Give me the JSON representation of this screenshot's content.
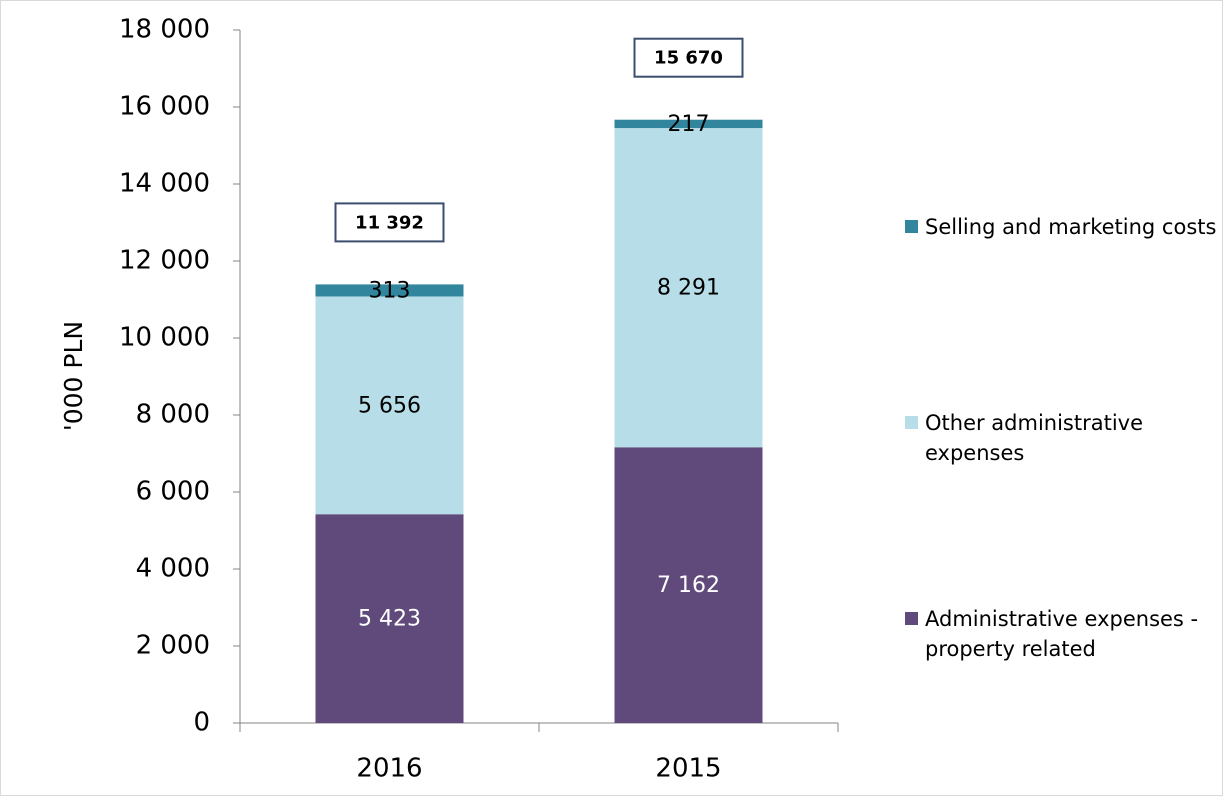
{
  "chart_data": {
    "type": "stacked_bar",
    "y_label": "'000 PLN",
    "categories": [
      "2016",
      "2015"
    ],
    "series": [
      {
        "name": "Administrative expenses - property related",
        "color": "#604a7b",
        "label_color": "#ffffff",
        "values": [
          5423,
          7162
        ],
        "value_labels": [
          "5 423",
          "7 162"
        ]
      },
      {
        "name": "Other administrative expenses",
        "color": "#b7dde8",
        "label_color": "#000000",
        "values": [
          5656,
          8291
        ],
        "value_labels": [
          "5 656",
          "8 291"
        ]
      },
      {
        "name": "Selling and marketing costs",
        "color": "#31859c",
        "label_color": "#000000",
        "values": [
          313,
          217
        ],
        "value_labels": [
          "313",
          "217"
        ]
      }
    ],
    "totals": [
      11392,
      15670
    ],
    "total_labels": [
      "11 392",
      "15 670"
    ],
    "ylim": [
      0,
      18000
    ],
    "yticks": [
      0,
      {
        "value": 2000,
        "label": "2 000"
      },
      {
        "value": 4000,
        "label": "4 000"
      },
      {
        "value": 6000,
        "label": "6 000"
      },
      {
        "value": 8000,
        "label": "8 000"
      },
      {
        "value": 10000,
        "label": "10 000"
      },
      {
        "value": 12000,
        "label": "12 000"
      },
      {
        "value": 14000,
        "label": "14 000"
      },
      {
        "value": 16000,
        "label": "16 000"
      },
      {
        "value": 18000,
        "label": "18 000"
      }
    ],
    "legend": "right"
  }
}
